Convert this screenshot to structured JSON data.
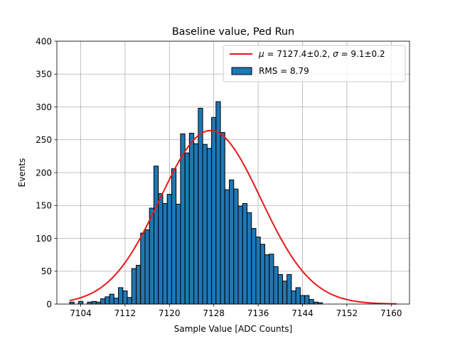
{
  "chart_data": {
    "type": "bar",
    "title": "Baseline value, Ped Run",
    "xlabel": "Sample Value [ADC Counts]",
    "ylabel": "Events",
    "xlim": [
      7099.7,
      7163.3
    ],
    "ylim": [
      0,
      400
    ],
    "xticks": [
      7104,
      7112,
      7120,
      7128,
      7136,
      7144,
      7152,
      7160
    ],
    "yticks": [
      0,
      50,
      100,
      150,
      200,
      250,
      300,
      350,
      400
    ],
    "grid": true,
    "legend_position": "top-right",
    "bin_start": 7102,
    "bin_width": 0.8,
    "histogram": {
      "name": "RMS = 8.79",
      "color": "#1f77b4",
      "edge_color": "#000000",
      "values": [
        3,
        0,
        4,
        0,
        3,
        4,
        3,
        8,
        11,
        15,
        9,
        25,
        20,
        10,
        54,
        59,
        108,
        113,
        146,
        210,
        168,
        153,
        167,
        206,
        152,
        259,
        230,
        260,
        244,
        298,
        243,
        237,
        284,
        308,
        261,
        174,
        189,
        175,
        149,
        153,
        139,
        115,
        102,
        91,
        75,
        76,
        57,
        45,
        35,
        45,
        20,
        25,
        13,
        13,
        7,
        3,
        2
      ]
    },
    "fit": {
      "name": "μ = 7127.4±0.2, σ = 9.1±0.2",
      "color": "#e8191a",
      "mu": 7127.4,
      "sigma": 9.1,
      "amplitude": 264,
      "x_range": [
        7102,
        7161
      ]
    }
  },
  "legend": {
    "fit_label_mu_symbol": "μ",
    "fit_label_mu_value": " = 7127.4±0.2, ",
    "fit_label_sigma_symbol": "σ",
    "fit_label_sigma_value": " = 9.1±0.2",
    "hist_label": "RMS = 8.79"
  }
}
